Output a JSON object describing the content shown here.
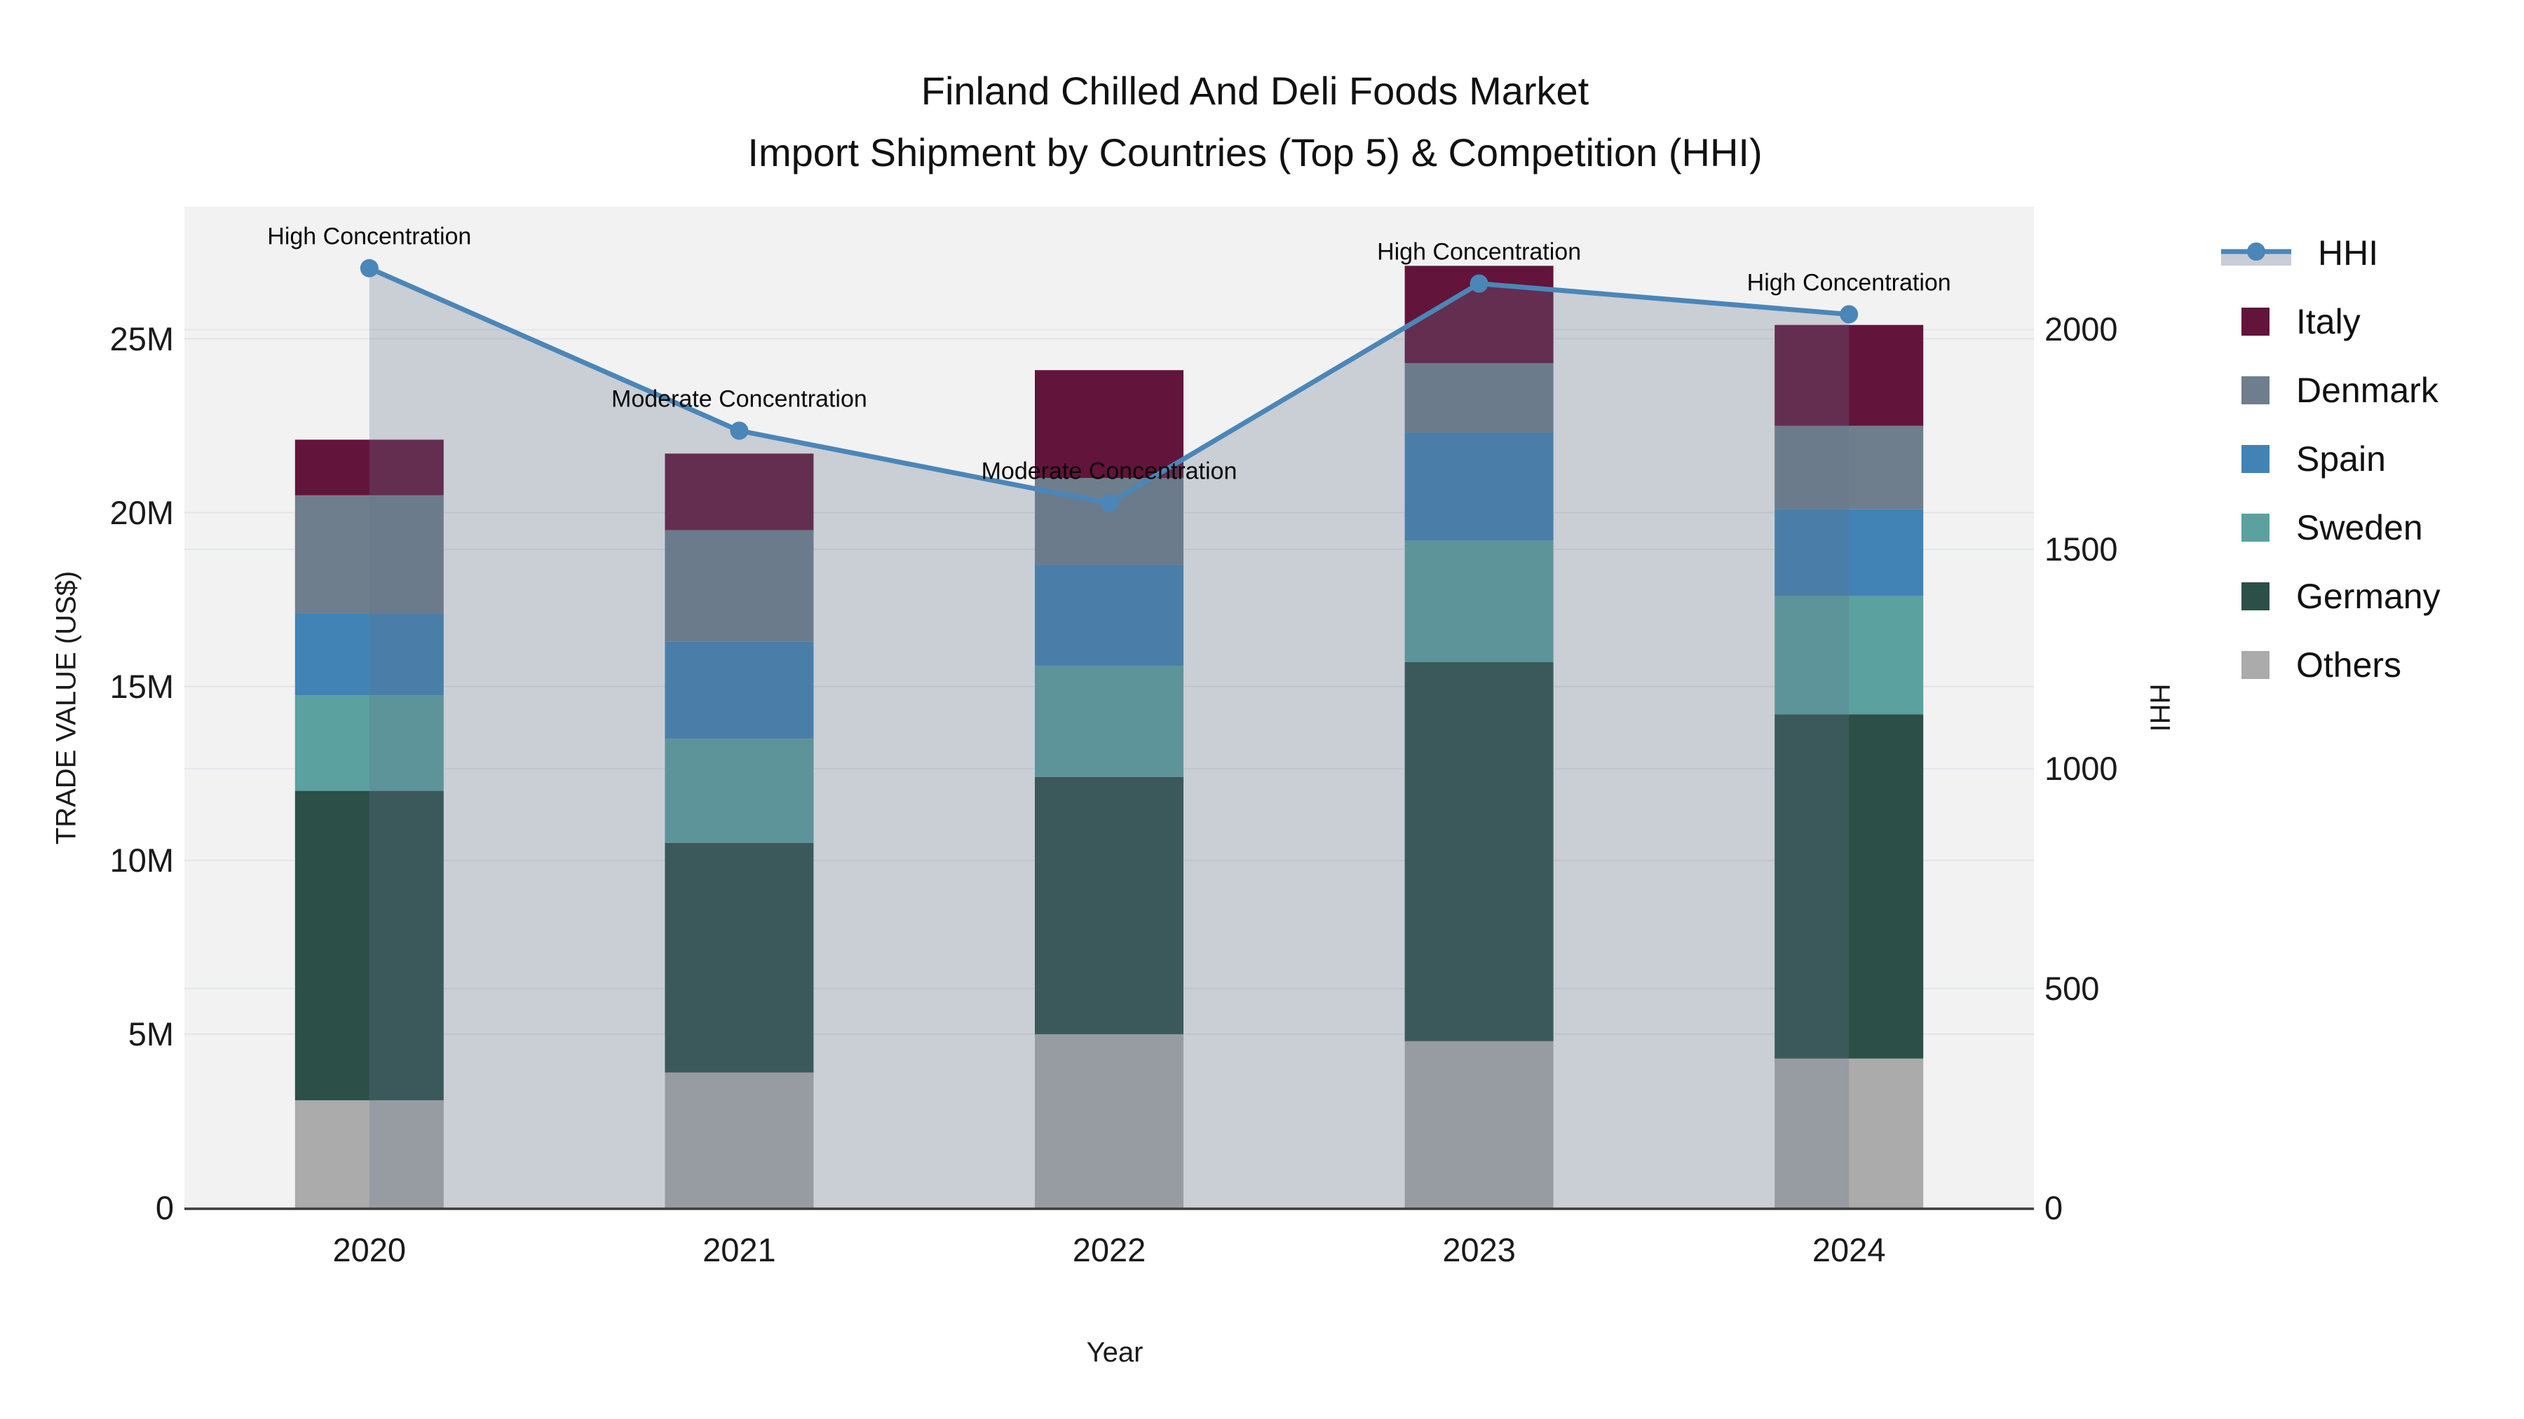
{
  "title": {
    "line1": "Finland Chilled And Deli Foods Market",
    "line2": "Import Shipment by Countries (Top 5) & Competition (HHI)"
  },
  "axes": {
    "x": {
      "title": "Year",
      "tick_labels": [
        "2020",
        "2021",
        "2022",
        "2023",
        "2024"
      ]
    },
    "y_left": {
      "title": "TRADE VALUE (US$)",
      "tick_labels": [
        "0",
        "5M",
        "10M",
        "15M",
        "20M",
        "25M"
      ],
      "tick_values": [
        0,
        5,
        10,
        15,
        20,
        25
      ]
    },
    "y_right": {
      "title": "HHI",
      "tick_labels": [
        "0",
        "500",
        "1000",
        "1500",
        "2000"
      ],
      "tick_values": [
        0,
        500,
        1000,
        1500,
        2000
      ]
    }
  },
  "legend": {
    "items": [
      {
        "label": "HHI",
        "type": "line",
        "color": "#4b86b8"
      },
      {
        "label": "Italy",
        "type": "square",
        "color": "#63143a"
      },
      {
        "label": "Denmark",
        "type": "square",
        "color": "#6e7e8c"
      },
      {
        "label": "Spain",
        "type": "square",
        "color": "#4183b5"
      },
      {
        "label": "Sweden",
        "type": "square",
        "color": "#5aa19f"
      },
      {
        "label": "Germany",
        "type": "square",
        "color": "#2c4f48"
      },
      {
        "label": "Others",
        "type": "square",
        "color": "#ababab"
      }
    ]
  },
  "chart_data": {
    "type": "bar+line",
    "title": "Finland Chilled And Deli Foods Market — Import Shipment by Countries (Top 5) & Competition (HHI)",
    "categories": [
      "2020",
      "2021",
      "2022",
      "2023",
      "2024"
    ],
    "xlabel": "Year",
    "ylabel_left": "TRADE VALUE (US$)",
    "ylabel_right": "HHI",
    "units_left": "million US$",
    "ylim_left": [
      0,
      28.8
    ],
    "ylim_right": [
      0,
      2280
    ],
    "grid": true,
    "legend_position": "right",
    "bar_stack_order_bottom_to_top": [
      "Others",
      "Germany",
      "Sweden",
      "Spain",
      "Denmark",
      "Italy"
    ],
    "bar_series": [
      {
        "name": "Others",
        "color": "#ababab",
        "values": [
          3.1,
          3.9,
          5.0,
          4.8,
          4.3
        ]
      },
      {
        "name": "Germany",
        "color": "#2c4f48",
        "values": [
          8.9,
          6.6,
          7.4,
          10.9,
          9.9
        ]
      },
      {
        "name": "Sweden",
        "color": "#5aa19f",
        "values": [
          2.75,
          3.0,
          3.2,
          3.5,
          3.4
        ]
      },
      {
        "name": "Spain",
        "color": "#4183b5",
        "values": [
          2.35,
          2.8,
          2.9,
          3.1,
          2.5
        ]
      },
      {
        "name": "Denmark",
        "color": "#6e7e8c",
        "values": [
          3.4,
          3.2,
          2.5,
          2.0,
          2.4
        ]
      },
      {
        "name": "Italy",
        "color": "#63143a",
        "values": [
          1.6,
          2.2,
          3.1,
          2.8,
          2.9
        ]
      }
    ],
    "bar_totals": [
      22.1,
      21.7,
      24.1,
      27.1,
      25.4
    ],
    "line_series": {
      "name": "HHI",
      "color": "#4b86b8",
      "area_fill": "rgba(100,115,140,0.28)",
      "values": [
        2140,
        1770,
        1605,
        2105,
        2035
      ]
    },
    "annotations": [
      {
        "category": "2020",
        "label": "High Concentration"
      },
      {
        "category": "2021",
        "label": "Moderate Concentration"
      },
      {
        "category": "2022",
        "label": "Moderate Concentration"
      },
      {
        "category": "2023",
        "label": "High Concentration"
      },
      {
        "category": "2024",
        "label": "High Concentration"
      }
    ]
  }
}
